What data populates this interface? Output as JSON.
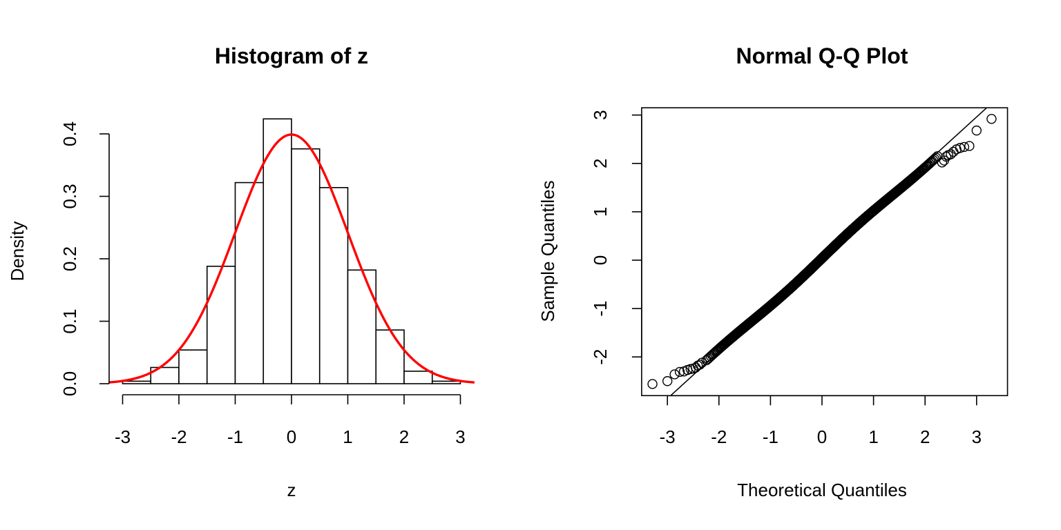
{
  "chart_data": [
    {
      "type": "bar",
      "title": "Histogram of z",
      "xlabel": "z",
      "ylabel": "Density",
      "xlim": [
        -3.25,
        3.25
      ],
      "ylim": [
        0,
        0.425
      ],
      "xticks": [
        "-3",
        "-2",
        "-1",
        "0",
        "1",
        "2",
        "3"
      ],
      "yticks": [
        "0.0",
        "0.1",
        "0.2",
        "0.3",
        "0.4"
      ],
      "bin_edges": [
        -3.0,
        -2.5,
        -2.0,
        -1.5,
        -1.0,
        -0.5,
        0.0,
        0.5,
        1.0,
        1.5,
        2.0,
        2.5,
        3.0
      ],
      "values": [
        0.004,
        0.026,
        0.054,
        0.188,
        0.322,
        0.424,
        0.376,
        0.314,
        0.182,
        0.086,
        0.02,
        0.004
      ],
      "overlay": {
        "type": "line",
        "curve": "normal density",
        "mean": 0,
        "sd": 1,
        "color": "#ff0000"
      },
      "bar_fill": "#ffffff",
      "grid": false
    },
    {
      "type": "scatter",
      "title": "Normal Q-Q Plot",
      "xlabel": "Theoretical Quantiles",
      "ylabel": "Sample Quantiles",
      "xlim": [
        -3.5,
        3.6
      ],
      "ylim": [
        -2.8,
        3.15
      ],
      "xticks": [
        "-3",
        "-2",
        "-1",
        "0",
        "1",
        "2",
        "3"
      ],
      "yticks": [
        "-2",
        "-1",
        "0",
        "1",
        "2",
        "3"
      ],
      "n_points": 1000,
      "extreme_points": [
        {
          "x": -3.29,
          "y": -2.56
        },
        {
          "x": -3.0,
          "y": -2.5
        },
        {
          "x": -2.86,
          "y": -2.36
        },
        {
          "x": -2.76,
          "y": -2.31
        },
        {
          "x": -2.68,
          "y": -2.3
        },
        {
          "x": -2.61,
          "y": -2.27
        },
        {
          "x": -2.55,
          "y": -2.25
        },
        {
          "x": -2.5,
          "y": -2.24
        },
        {
          "x": -2.45,
          "y": -2.22
        },
        {
          "x": -2.41,
          "y": -2.18
        },
        {
          "x": -2.37,
          "y": -2.16
        },
        {
          "x": -2.33,
          "y": -2.12
        },
        {
          "x": 2.33,
          "y": 2.02
        },
        {
          "x": 2.37,
          "y": 2.06
        },
        {
          "x": 2.41,
          "y": 2.14
        },
        {
          "x": 2.45,
          "y": 2.17
        },
        {
          "x": 2.5,
          "y": 2.19
        },
        {
          "x": 2.55,
          "y": 2.24
        },
        {
          "x": 2.61,
          "y": 2.29
        },
        {
          "x": 2.68,
          "y": 2.32
        },
        {
          "x": 2.76,
          "y": 2.34
        },
        {
          "x": 2.86,
          "y": 2.36
        },
        {
          "x": 3.0,
          "y": 2.68
        },
        {
          "x": 3.29,
          "y": 2.92
        }
      ],
      "reference_line": {
        "intercept": 0.05,
        "slope": 0.97
      },
      "grid": false
    }
  ]
}
